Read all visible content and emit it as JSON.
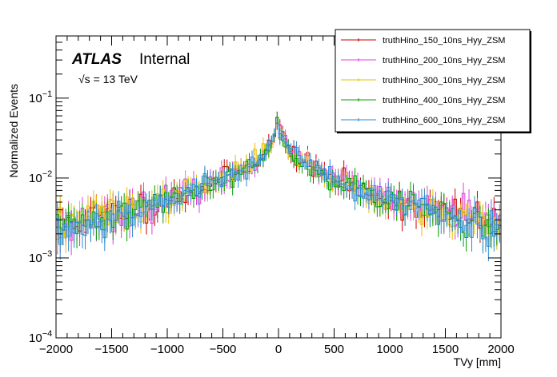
{
  "chart_data": {
    "type": "histogram",
    "ylabel": "Normalized Events",
    "xlabel": "TVy [mm]",
    "xlim": [
      -2000,
      2000
    ],
    "ylim": [
      0.0001,
      0.6
    ],
    "yscale": "log",
    "x_ticks": [
      {
        "value": -2000,
        "label": "−2000"
      },
      {
        "value": -1500,
        "label": "−1500"
      },
      {
        "value": -1000,
        "label": "−1000"
      },
      {
        "value": -500,
        "label": "−500"
      },
      {
        "value": 0,
        "label": "0"
      },
      {
        "value": 500,
        "label": "500"
      },
      {
        "value": 1000,
        "label": "1000"
      },
      {
        "value": 1500,
        "label": "1500"
      },
      {
        "value": 2000,
        "label": "2000"
      }
    ],
    "y_ticks": [
      {
        "value": 0.0001,
        "base": "10",
        "exp": "−4"
      },
      {
        "value": 0.001,
        "base": "10",
        "exp": "−3"
      },
      {
        "value": 0.01,
        "base": "10",
        "exp": "−2"
      },
      {
        "value": 0.1,
        "base": "10",
        "exp": "−1"
      }
    ],
    "atlas_label": "ATLAS",
    "atlas_status": "Internal",
    "energy_label": "√s = 13 TeV",
    "series": [
      {
        "name": "truthHino_150_10ns_Hyy_ZSM",
        "color": "#cc0000",
        "edge_left": 0.0026,
        "edge_right": 0.0026,
        "peak": 0.05,
        "seed": 11
      },
      {
        "name": "truthHino_200_10ns_Hyy_ZSM",
        "color": "#e040e0",
        "edge_left": 0.0023,
        "edge_right": 0.0028,
        "peak": 0.048,
        "seed": 23
      },
      {
        "name": "truthHino_300_10ns_Hyy_ZSM",
        "color": "#e6c000",
        "edge_left": 0.0025,
        "edge_right": 0.0024,
        "peak": 0.046,
        "seed": 37
      },
      {
        "name": "truthHino_400_10ns_Hyy_ZSM",
        "color": "#00a000",
        "edge_left": 0.0022,
        "edge_right": 0.0023,
        "peak": 0.049,
        "seed": 41
      },
      {
        "name": "truthHino_600_10ns_Hyy_ZSM",
        "color": "#2a8ad8",
        "edge_left": 0.0021,
        "edge_right": 0.0022,
        "peak": 0.047,
        "seed": 53
      }
    ],
    "bins": 160,
    "mid_value_at_500": 0.0095,
    "mid_value_at_1000": 0.0053
  }
}
